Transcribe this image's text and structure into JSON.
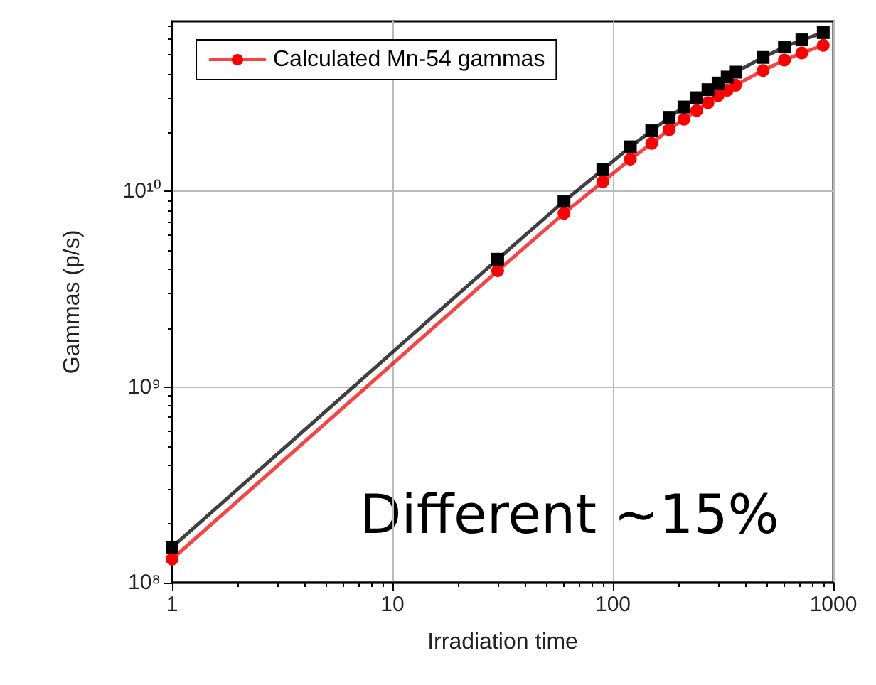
{
  "chart_data": {
    "type": "line",
    "xlabel": "Irradiation time",
    "ylabel": "Gammas (p/s)",
    "log": "xy",
    "grid": true,
    "legend": "top left",
    "line_style": "solid",
    "xlim": [
      1,
      1000
    ],
    "xticks": [
      1,
      10,
      100,
      1000
    ],
    "ylim": [
      100000000,
      74000000000
    ],
    "yticks": [
      {
        "value": 100000000,
        "label": "10⁸"
      },
      {
        "value": 1000000000,
        "label": "10⁹"
      },
      {
        "value": 10000000000,
        "label": "10¹⁰"
      }
    ],
    "annotations": [
      "Different ~15%"
    ],
    "series": [
      {
        "color": "#000000",
        "marker": "square",
        "x": [
          1,
          30,
          60,
          90,
          120,
          150,
          180,
          210,
          240,
          270,
          300,
          330,
          360,
          480,
          600,
          720,
          900
        ],
        "values": [
          152000000,
          4500000000,
          8900000000,
          12900000000,
          16900000000,
          20400000000,
          23900000000,
          27000000000,
          30100000000,
          33100000000,
          35800000000,
          38400000000,
          40700000000,
          48400000000,
          54700000000,
          59500000000,
          64800000000
        ]
      },
      {
        "name": "Calculated Mn-54 gammas",
        "color": "#ff0000",
        "marker": "circle",
        "x": [
          1,
          30,
          60,
          90,
          120,
          150,
          180,
          210,
          240,
          270,
          300,
          330,
          360,
          480,
          600,
          720,
          900
        ],
        "values": [
          132000000,
          3930000000,
          7730000000,
          11200000000,
          14600000000,
          17600000000,
          20700000000,
          23400000000,
          25900000000,
          28400000000,
          30900000000,
          32900000000,
          34900000000,
          41500000000,
          46900000000,
          51000000000,
          55800000000
        ]
      }
    ]
  }
}
